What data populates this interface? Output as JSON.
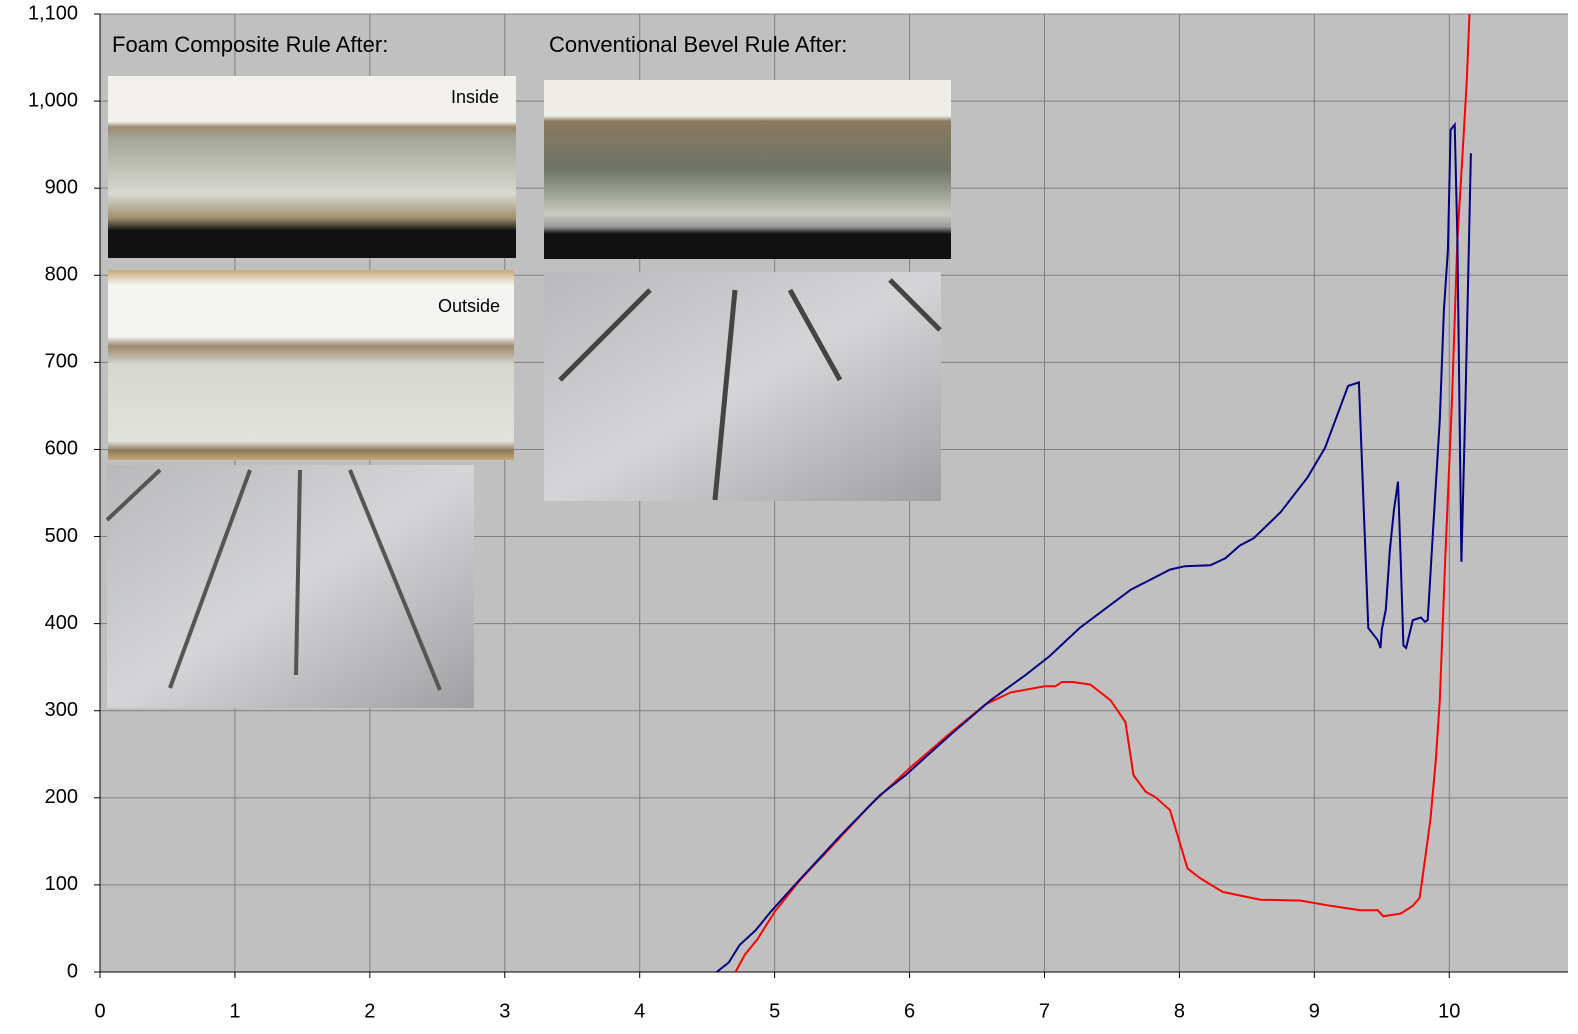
{
  "chart_data": {
    "type": "line",
    "xlim": [
      0,
      10.88
    ],
    "xticks": [
      0,
      1,
      2,
      3,
      4,
      5,
      6,
      7,
      8,
      9,
      10
    ],
    "ylim": [
      0,
      1100
    ],
    "yticks": [
      0,
      100,
      200,
      300,
      400,
      500,
      600,
      700,
      800,
      900,
      {
        "value": 1000,
        "label": "1,000"
      },
      {
        "value": 1100,
        "label": "1,100"
      }
    ],
    "grid": true,
    "background": "#c0c0c0",
    "grid_color": "#808080",
    "annotations": [
      {
        "text": "Foam Composite Rule After:",
        "color": "#ff0000"
      },
      {
        "text": "Conventional Bevel Rule After:",
        "color": "#000080"
      }
    ],
    "photo_labels": [
      "Inside",
      "Outside"
    ],
    "series": [
      {
        "color": "#ff0000",
        "x": [
          4.71,
          4.78,
          4.87,
          5.0,
          5.19,
          5.41,
          5.71,
          6.0,
          6.3,
          6.56,
          6.75,
          7.0,
          7.08,
          7.13,
          7.21,
          7.34,
          7.49,
          7.6,
          7.66,
          7.75,
          7.82,
          7.93,
          8.06,
          8.15,
          8.32,
          8.6,
          8.9,
          9.12,
          9.34,
          9.47,
          9.51,
          9.64,
          9.73,
          9.78,
          9.82,
          9.86,
          9.9,
          9.93,
          9.97,
          10.02,
          10.06,
          10.1,
          10.13,
          10.15
        ],
        "values": [
          0,
          20,
          37,
          69,
          106,
          142,
          192,
          234,
          274,
          307,
          321,
          328,
          328,
          333,
          333,
          330,
          312,
          287,
          226,
          207,
          201,
          186,
          119,
          108,
          92,
          83,
          82,
          76,
          71,
          71,
          64,
          67,
          76,
          85,
          129,
          175,
          243,
          312,
          473,
          657,
          841,
          944,
          1024,
          1100
        ]
      },
      {
        "color": "#000080",
        "x": [
          4.57,
          4.66,
          4.74,
          4.86,
          4.97,
          5.15,
          5.49,
          5.78,
          5.97,
          6.3,
          6.6,
          6.86,
          7.04,
          7.26,
          7.64,
          7.93,
          8.04,
          8.23,
          8.34,
          8.45,
          8.55,
          8.75,
          8.95,
          9.08,
          9.25,
          9.33,
          9.4,
          9.47,
          9.49,
          9.5,
          9.53,
          9.56,
          9.59,
          9.62,
          9.64,
          9.66,
          9.68,
          9.73,
          9.79,
          9.82,
          9.84,
          9.88,
          9.93,
          9.96,
          9.99,
          10.01,
          10.04,
          10.06,
          10.09,
          10.12,
          10.16
        ],
        "values": [
          0,
          11,
          31,
          48,
          69,
          100,
          157,
          203,
          226,
          272,
          312,
          341,
          363,
          395,
          439,
          462,
          466,
          467,
          475,
          490,
          498,
          528,
          568,
          602,
          673,
          677,
          395,
          381,
          372,
          393,
          416,
          485,
          530,
          563,
          473,
          375,
          372,
          404,
          407,
          402,
          404,
          508,
          634,
          760,
          829,
          967,
          973,
          841,
          471,
          657,
          940
        ]
      }
    ]
  }
}
